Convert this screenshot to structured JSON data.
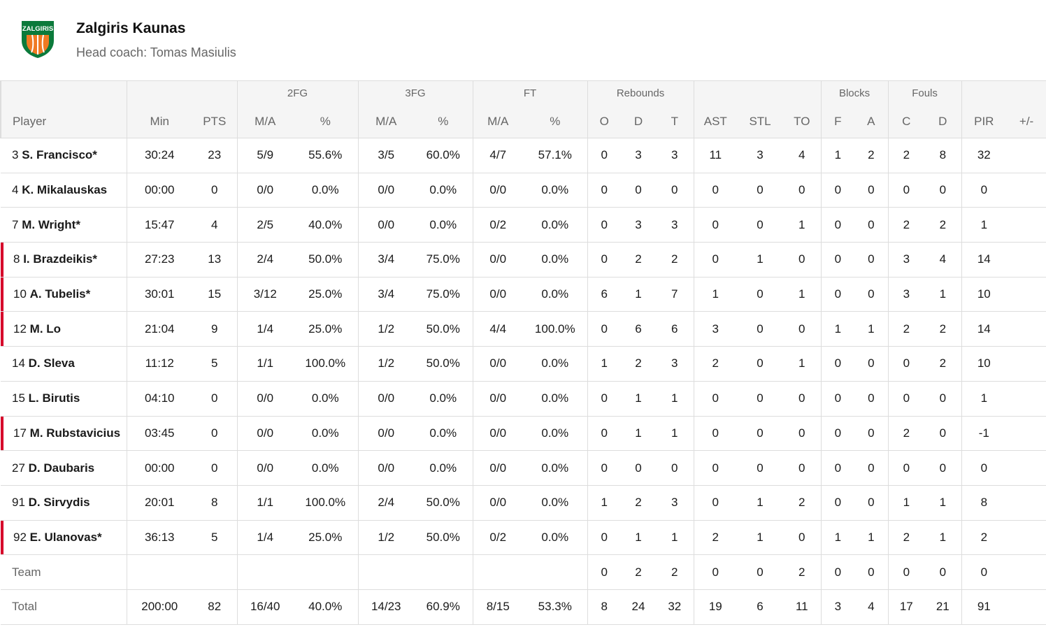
{
  "header": {
    "logo_text": "ZALGIRIS",
    "title": "Zalgiris Kaunas",
    "subtitle": "Head coach: Tomas Masiulis"
  },
  "table": {
    "groups": [
      "2FG",
      "3FG",
      "FT",
      "Rebounds",
      "Blocks",
      "Fouls"
    ],
    "columns": [
      "Player",
      "Min",
      "PTS",
      "M/A",
      "%",
      "M/A",
      "%",
      "M/A",
      "%",
      "O",
      "D",
      "T",
      "AST",
      "STL",
      "TO",
      "F",
      "A",
      "C",
      "D",
      "PIR",
      "+/-"
    ],
    "rows": [
      {
        "number": "3",
        "name": "S. Francisco*",
        "stats": [
          "30:24",
          "23",
          "5/9",
          "55.6%",
          "3/5",
          "60.0%",
          "4/7",
          "57.1%",
          "0",
          "3",
          "3",
          "11",
          "3",
          "4",
          "1",
          "2",
          "2",
          "8",
          "32"
        ]
      },
      {
        "number": "4",
        "name": "K. Mikalauskas",
        "stats": [
          "00:00",
          "0",
          "0/0",
          "0.0%",
          "0/0",
          "0.0%",
          "0/0",
          "0.0%",
          "0",
          "0",
          "0",
          "0",
          "0",
          "0",
          "0",
          "0",
          "0",
          "0",
          "0"
        ]
      },
      {
        "number": "7",
        "name": "M. Wright*",
        "stats": [
          "15:47",
          "4",
          "2/5",
          "40.0%",
          "0/0",
          "0.0%",
          "0/2",
          "0.0%",
          "0",
          "3",
          "3",
          "0",
          "0",
          "1",
          "0",
          "0",
          "2",
          "2",
          "1"
        ]
      },
      {
        "number": "8",
        "name": "I. Brazdeikis*",
        "marked": true,
        "stats": [
          "27:23",
          "13",
          "2/4",
          "50.0%",
          "3/4",
          "75.0%",
          "0/0",
          "0.0%",
          "0",
          "2",
          "2",
          "0",
          "1",
          "0",
          "0",
          "0",
          "3",
          "4",
          "14"
        ]
      },
      {
        "number": "10",
        "name": "A. Tubelis*",
        "marked": true,
        "stats": [
          "30:01",
          "15",
          "3/12",
          "25.0%",
          "3/4",
          "75.0%",
          "0/0",
          "0.0%",
          "6",
          "1",
          "7",
          "1",
          "0",
          "1",
          "0",
          "0",
          "3",
          "1",
          "10"
        ]
      },
      {
        "number": "12",
        "name": "M. Lo",
        "marked": true,
        "stats": [
          "21:04",
          "9",
          "1/4",
          "25.0%",
          "1/2",
          "50.0%",
          "4/4",
          "100.0%",
          "0",
          "6",
          "6",
          "3",
          "0",
          "0",
          "1",
          "1",
          "2",
          "2",
          "14"
        ]
      },
      {
        "number": "14",
        "name": "D. Sleva",
        "stats": [
          "11:12",
          "5",
          "1/1",
          "100.0%",
          "1/2",
          "50.0%",
          "0/0",
          "0.0%",
          "1",
          "2",
          "3",
          "2",
          "0",
          "1",
          "0",
          "0",
          "0",
          "2",
          "10"
        ]
      },
      {
        "number": "15",
        "name": "L. Birutis",
        "stats": [
          "04:10",
          "0",
          "0/0",
          "0.0%",
          "0/0",
          "0.0%",
          "0/0",
          "0.0%",
          "0",
          "1",
          "1",
          "0",
          "0",
          "0",
          "0",
          "0",
          "0",
          "0",
          "1"
        ]
      },
      {
        "number": "17",
        "name": "M. Rubstavicius",
        "marked": true,
        "stats": [
          "03:45",
          "0",
          "0/0",
          "0.0%",
          "0/0",
          "0.0%",
          "0/0",
          "0.0%",
          "0",
          "1",
          "1",
          "0",
          "0",
          "0",
          "0",
          "0",
          "2",
          "0",
          "-1"
        ]
      },
      {
        "number": "27",
        "name": "D. Daubaris",
        "stats": [
          "00:00",
          "0",
          "0/0",
          "0.0%",
          "0/0",
          "0.0%",
          "0/0",
          "0.0%",
          "0",
          "0",
          "0",
          "0",
          "0",
          "0",
          "0",
          "0",
          "0",
          "0",
          "0"
        ]
      },
      {
        "number": "91",
        "name": "D. Sirvydis",
        "stats": [
          "20:01",
          "8",
          "1/1",
          "100.0%",
          "2/4",
          "50.0%",
          "0/0",
          "0.0%",
          "1",
          "2",
          "3",
          "0",
          "1",
          "2",
          "0",
          "0",
          "1",
          "1",
          "8"
        ]
      },
      {
        "number": "92",
        "name": "E. Ulanovas*",
        "marked": true,
        "stats": [
          "36:13",
          "5",
          "1/4",
          "25.0%",
          "1/2",
          "50.0%",
          "0/2",
          "0.0%",
          "0",
          "1",
          "1",
          "2",
          "1",
          "0",
          "1",
          "1",
          "2",
          "1",
          "2"
        ]
      },
      {
        "label": "Team",
        "stats": [
          null,
          null,
          null,
          null,
          null,
          null,
          null,
          null,
          "0",
          "2",
          "2",
          "0",
          "0",
          "2",
          "0",
          "0",
          "0",
          "0",
          "0"
        ]
      },
      {
        "label": "Total",
        "stats": [
          "200:00",
          "82",
          "16/40",
          "40.0%",
          "14/23",
          "60.9%",
          "8/15",
          "53.3%",
          "8",
          "24",
          "32",
          "19",
          "6",
          "11",
          "3",
          "4",
          "17",
          "21",
          "91"
        ]
      }
    ]
  }
}
